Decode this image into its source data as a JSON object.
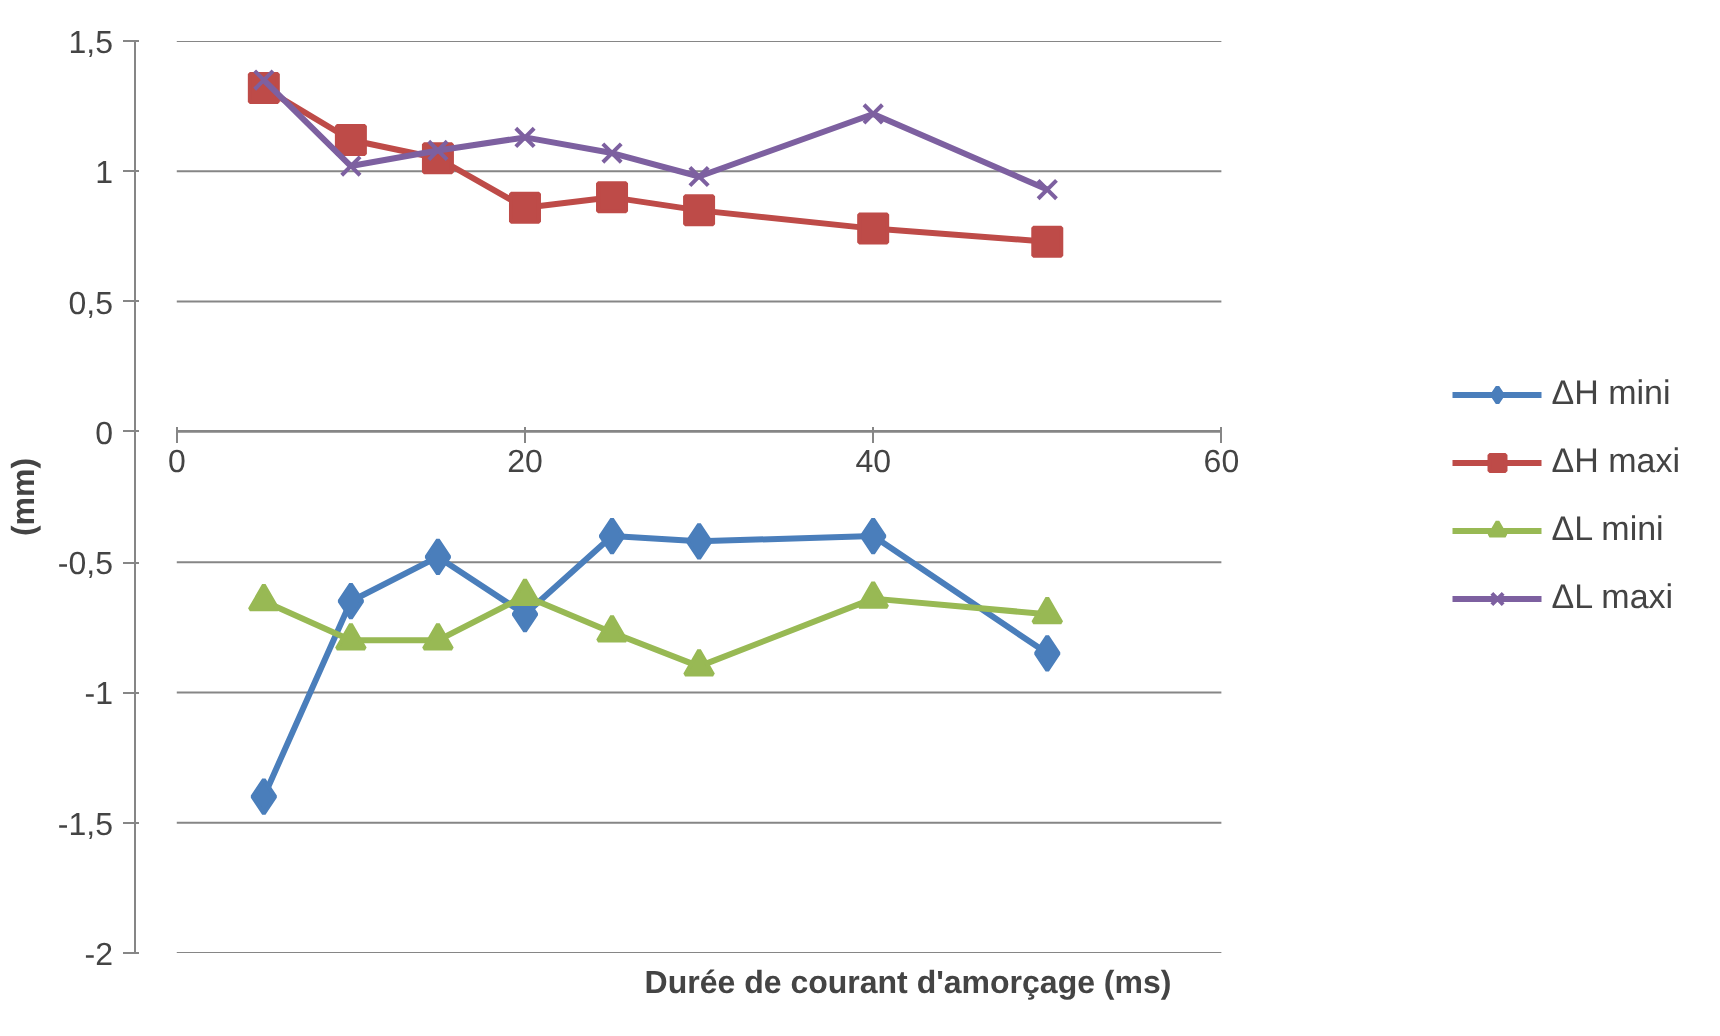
{
  "chart_data": {
    "type": "line",
    "xlabel": "Durée de courant d'amorçage (ms)",
    "ylabel": "(mm)",
    "x": [
      5,
      10,
      15,
      20,
      25,
      30,
      40,
      50
    ],
    "xlim": [
      0,
      60
    ],
    "xticks": [
      0,
      20,
      40,
      60
    ],
    "ylim": [
      -2,
      1.5
    ],
    "yticks": [
      {
        "value": -2,
        "label": "-2"
      },
      {
        "value": -1.5,
        "label": "-1,5"
      },
      {
        "value": -1,
        "label": "-1"
      },
      {
        "value": -0.5,
        "label": "-0,5"
      },
      {
        "value": 0,
        "label": "0"
      },
      {
        "value": 0.5,
        "label": "0,5"
      },
      {
        "value": 1,
        "label": "1"
      },
      {
        "value": 1.5,
        "label": "1,5"
      }
    ],
    "grid": "y",
    "legend": "right",
    "series": [
      {
        "name": "ΔH mini",
        "color": "#4a7ebb",
        "marker": "diamond",
        "values": [
          -1.4,
          -0.65,
          -0.48,
          -0.7,
          -0.4,
          -0.42,
          -0.4,
          -0.85
        ]
      },
      {
        "name": "ΔH maxi",
        "color": "#be4b48",
        "marker": "square",
        "values": [
          1.32,
          1.12,
          1.05,
          0.86,
          0.9,
          0.85,
          0.78,
          0.73
        ]
      },
      {
        "name": "ΔL mini",
        "color": "#98b954",
        "marker": "triangle",
        "values": [
          -0.65,
          -0.8,
          -0.8,
          -0.63,
          -0.77,
          -0.9,
          -0.64,
          -0.7
        ]
      },
      {
        "name": "ΔL maxi",
        "color": "#7d60a0",
        "marker": "cross",
        "values": [
          1.35,
          1.02,
          1.08,
          1.13,
          1.07,
          0.98,
          1.22,
          0.93
        ]
      }
    ]
  }
}
